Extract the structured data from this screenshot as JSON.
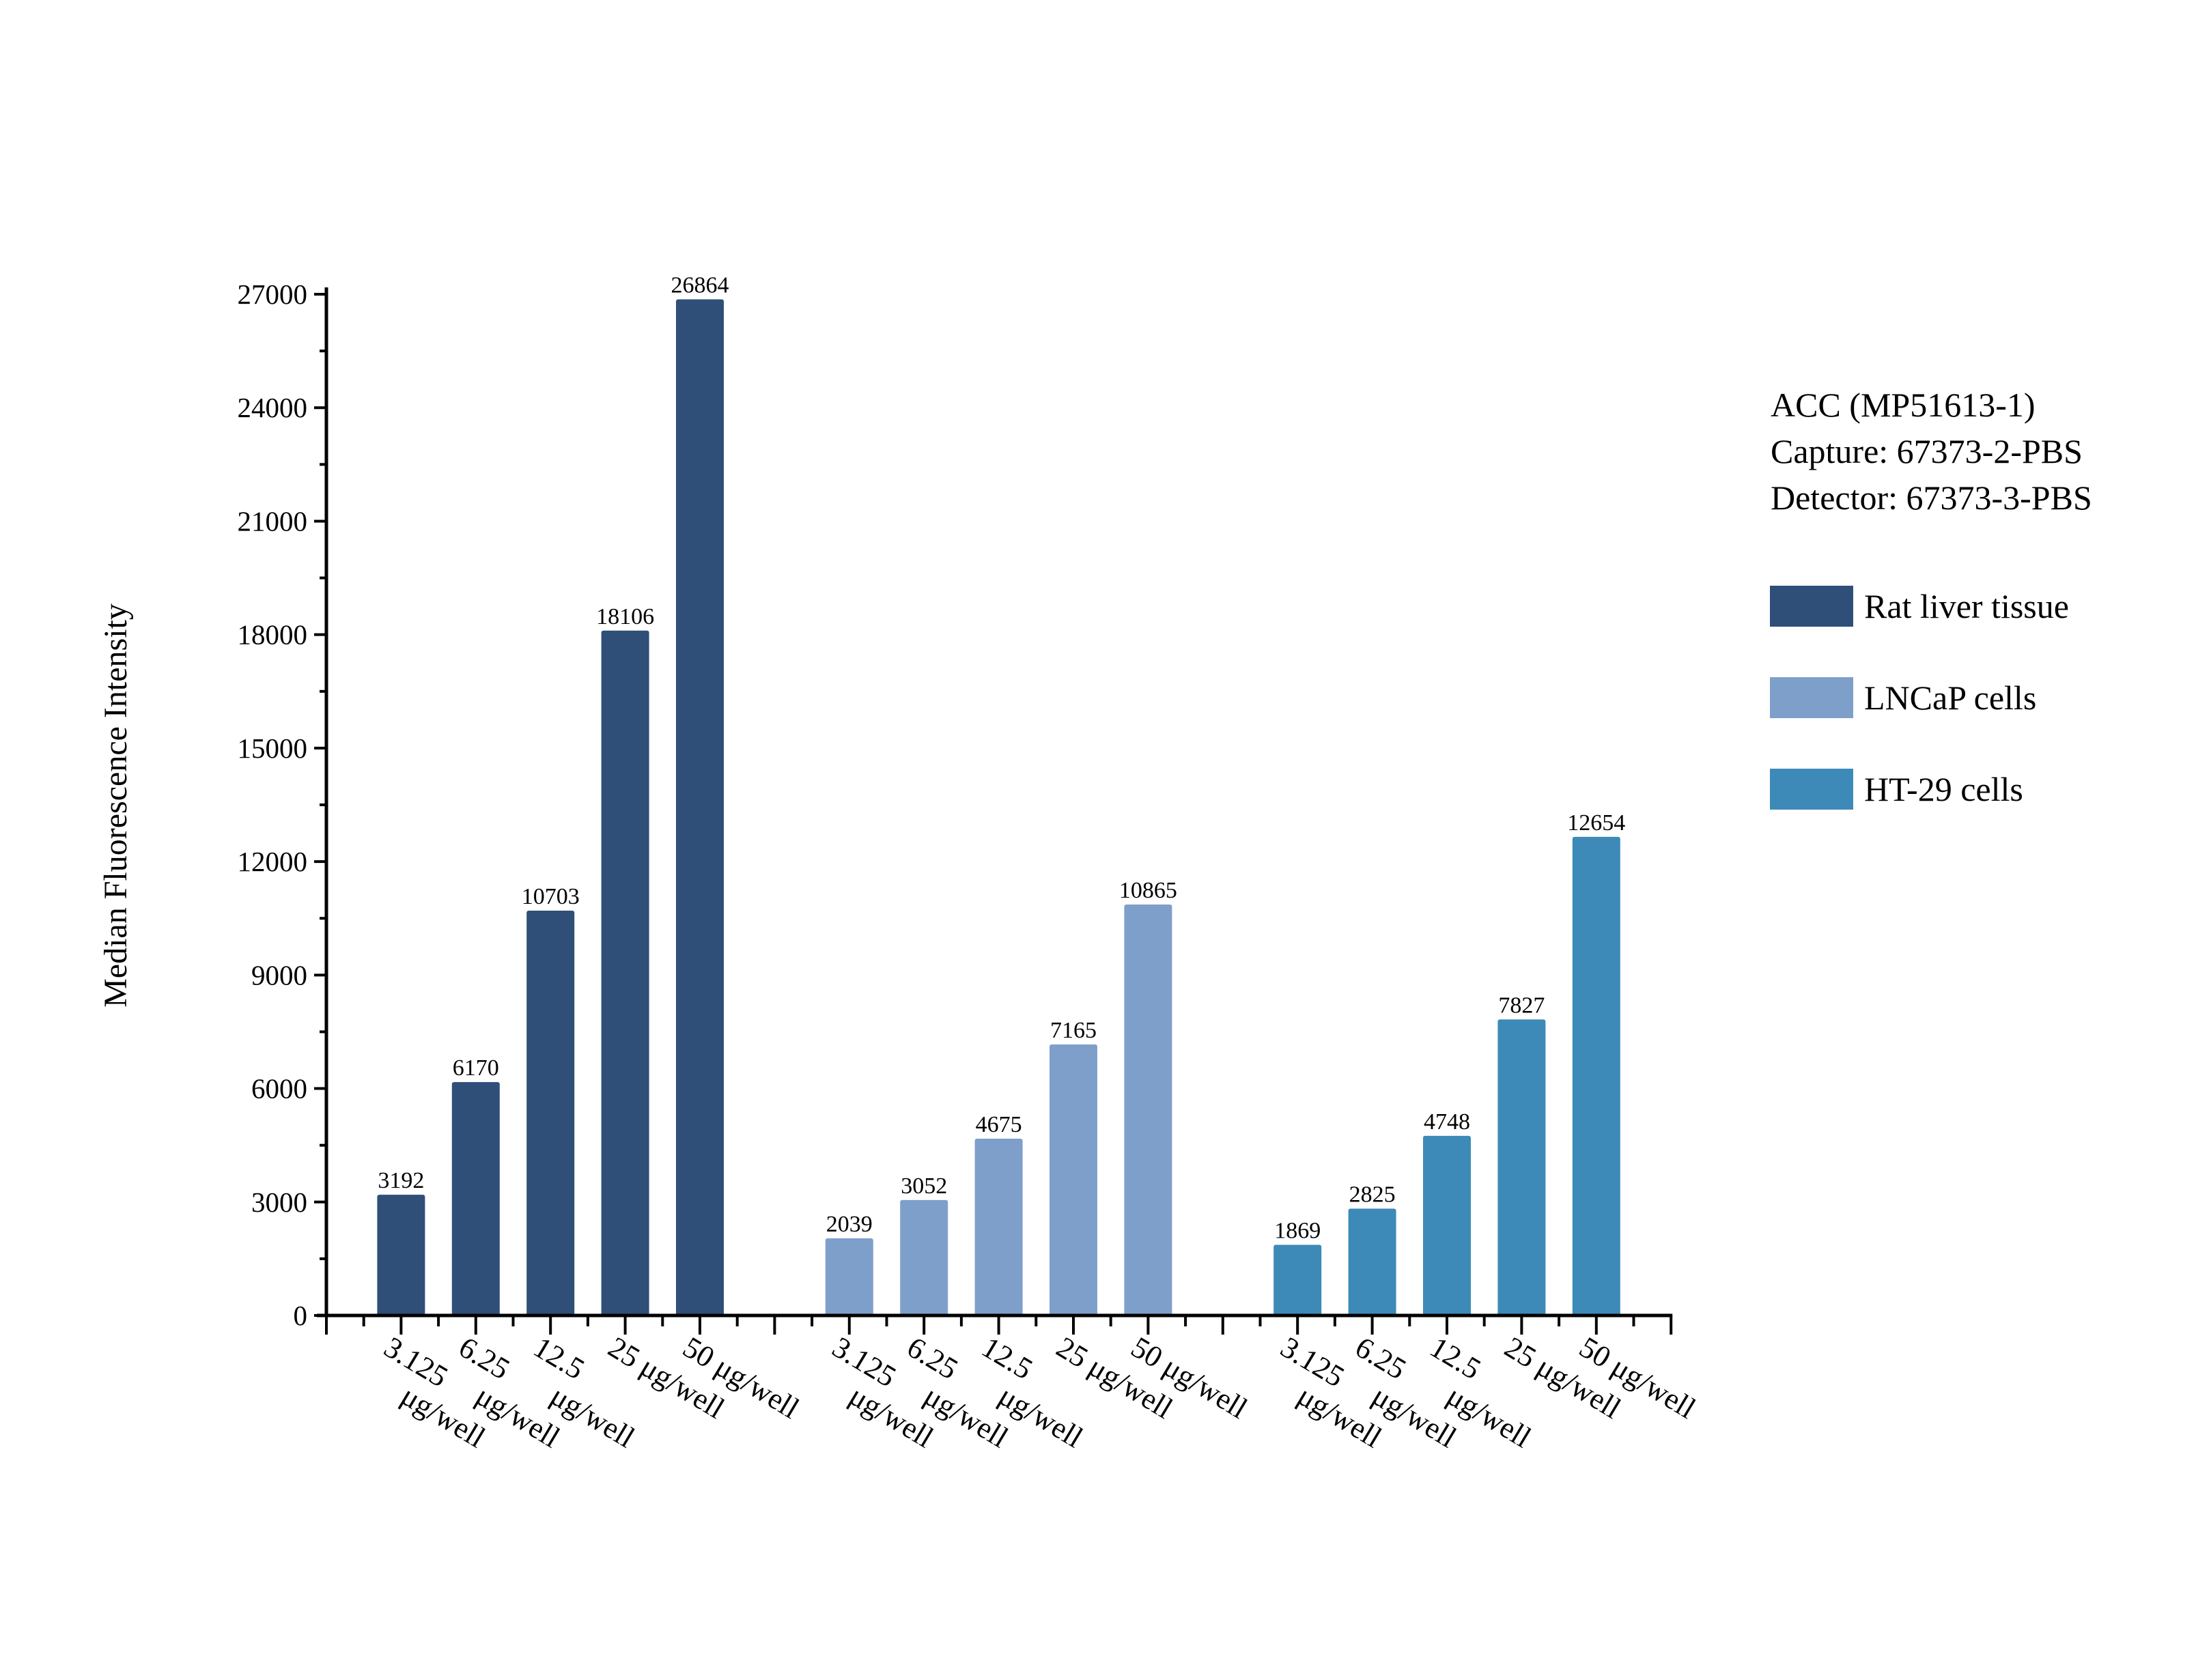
{
  "chart_data": {
    "type": "bar",
    "title": "",
    "ylabel": "Median Fluorescence Intensity",
    "xlabel": "",
    "ylim": [
      0,
      27000
    ],
    "yticks": [
      0,
      3000,
      6000,
      9000,
      12000,
      15000,
      18000,
      21000,
      24000,
      27000
    ],
    "grid": false,
    "legend_position": "right",
    "annotation": [
      "ACC (MP51613-1)",
      "Capture: 67373-2-PBS",
      "Detector: 67373-3-PBS"
    ],
    "categories": [
      "3.125 μg/well",
      "6.25 μg/well",
      "12.5 μg/well",
      "25 μg/well",
      "50 μg/well"
    ],
    "series": [
      {
        "name": "Rat liver tissue",
        "color": "#2f4f79",
        "values": [
          3192,
          6170,
          10703,
          18106,
          26864
        ]
      },
      {
        "name": "LNCaP cells",
        "color": "#7f9fcb",
        "values": [
          2039,
          3052,
          4675,
          7165,
          10865
        ]
      },
      {
        "name": "HT-29 cells",
        "color": "#3d8ab8",
        "values": [
          1869,
          2825,
          4748,
          7827,
          12654
        ]
      }
    ]
  }
}
